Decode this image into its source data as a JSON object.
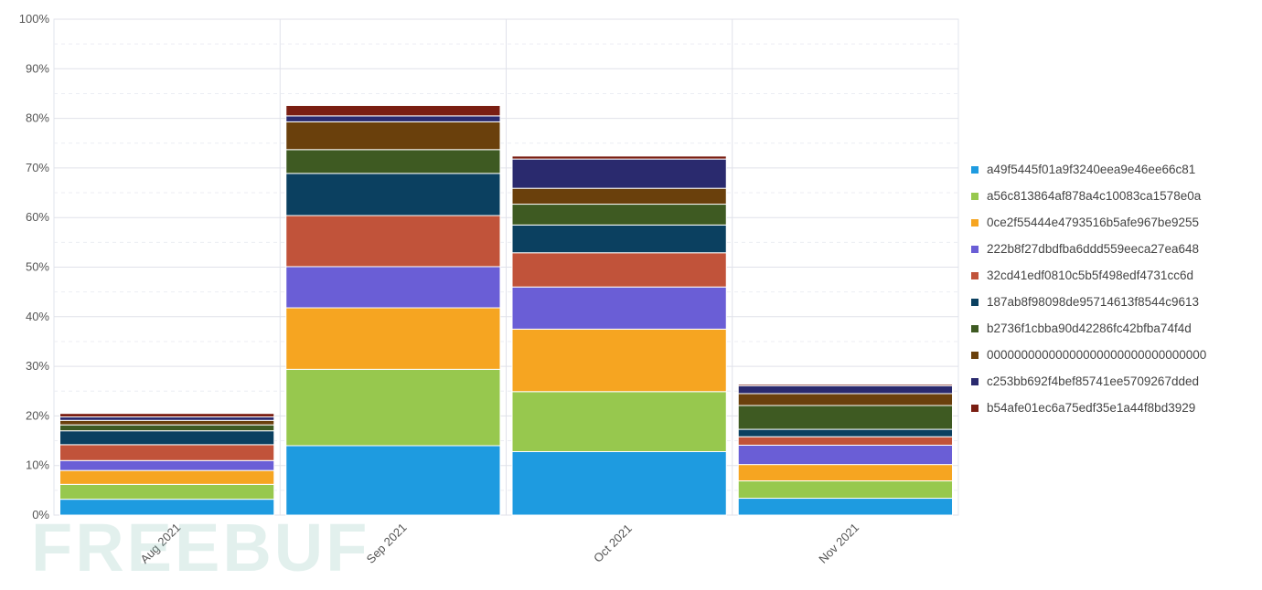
{
  "chart_data": {
    "type": "bar",
    "stacked": true,
    "categories": [
      "Aug 2021",
      "Sep 2021",
      "Oct 2021",
      "Nov 2021"
    ],
    "ylim": [
      0,
      100
    ],
    "yticks": [
      "0%",
      "10%",
      "20%",
      "30%",
      "40%",
      "50%",
      "60%",
      "70%",
      "80%",
      "90%",
      "100%"
    ],
    "grid": true,
    "legend_position": "right",
    "series": [
      {
        "name": "a49f5445f01a9f3240eea9e46ee66c81",
        "color": "#1e9be0",
        "values": [
          3.2,
          14.0,
          12.8,
          3.4
        ]
      },
      {
        "name": "a56c813864af878a4c10083ca1578e0a",
        "color": "#97c84e",
        "values": [
          3.0,
          15.4,
          12.1,
          3.5
        ]
      },
      {
        "name": "0ce2f55444e4793516b5afe967be9255",
        "color": "#f6a521",
        "values": [
          2.8,
          12.4,
          12.6,
          3.3
        ]
      },
      {
        "name": "222b8f27dbdfba6ddd559eeca27ea648",
        "color": "#6a5ed6",
        "values": [
          2.0,
          8.3,
          8.5,
          3.9
        ]
      },
      {
        "name": "32cd41edf0810c5b5f498edf4731cc6d",
        "color": "#c1533a",
        "values": [
          3.2,
          10.3,
          6.9,
          1.7
        ]
      },
      {
        "name": "187ab8f98098de95714613f8544c9613",
        "color": "#0b4060",
        "values": [
          2.8,
          8.5,
          5.6,
          1.5
        ]
      },
      {
        "name": "b2736f1cbba90d42286fc42bfba74f4d",
        "color": "#3e5a22",
        "values": [
          1.2,
          4.8,
          4.2,
          4.8
        ]
      },
      {
        "name": "00000000000000000000000000000000",
        "color": "#6a400c",
        "values": [
          0.9,
          5.6,
          3.2,
          2.4
        ]
      },
      {
        "name": "c253bb692f4bef85741ee5709267dded",
        "color": "#2a2a6e",
        "values": [
          0.7,
          1.2,
          5.9,
          1.6
        ]
      },
      {
        "name": "b54afe01ec6a75edf35e1a44f8bd3929",
        "color": "#7a1e12",
        "values": [
          0.7,
          2.1,
          0.6,
          0.3
        ]
      }
    ]
  },
  "watermark": {
    "text": "FREEBUF"
  }
}
